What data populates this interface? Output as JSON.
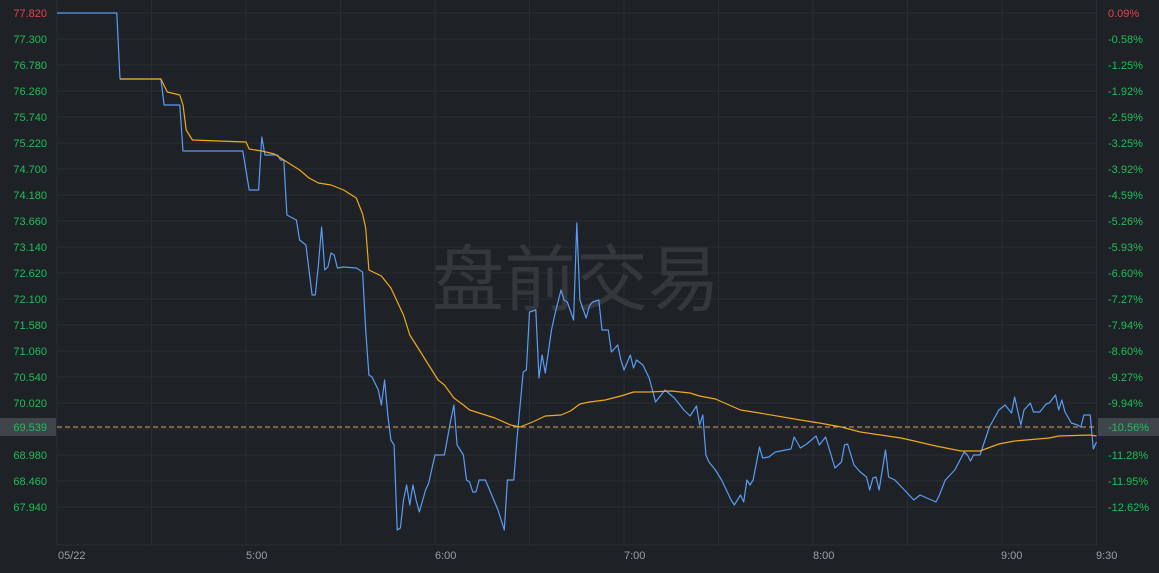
{
  "watermark": "盘前交易",
  "colors": {
    "background": "#1e2125",
    "grid": "#2a2e33",
    "price_line": "#5a9cf5",
    "avg_line": "#f0a81c",
    "up": "#e8414d",
    "down": "#1fbf5a",
    "highlight_box": "#40454b",
    "axis_text": "#9aa0a6"
  },
  "chart_data": {
    "type": "line",
    "date": "05/22",
    "x_ticks": [
      "05/22",
      "5:00",
      "6:00",
      "7:00",
      "8:00",
      "9:00",
      "9:30"
    ],
    "x_range": [
      "4:00",
      "9:30"
    ],
    "ylim": [
      67.94,
      77.82
    ],
    "y_ticks_left": [
      "77.820",
      "77.300",
      "76.780",
      "76.260",
      "75.740",
      "75.220",
      "74.700",
      "74.180",
      "73.660",
      "73.140",
      "72.620",
      "72.100",
      "71.580",
      "71.060",
      "70.540",
      "70.020",
      "69.500",
      "68.980",
      "68.460",
      "67.940"
    ],
    "y_ticks_right": [
      "0.09%",
      "-0.58%",
      "-1.25%",
      "-1.92%",
      "-2.59%",
      "-3.25%",
      "-3.92%",
      "-4.59%",
      "-5.26%",
      "-5.93%",
      "-6.60%",
      "-7.27%",
      "-7.94%",
      "-8.60%",
      "-9.27%",
      "-9.94%",
      "-10.61%",
      "-11.28%",
      "-11.95%",
      "-12.62%"
    ],
    "grid": true,
    "reference_line": {
      "price": "69.539",
      "percent": "-10.56%",
      "value": 69.539
    },
    "series": [
      {
        "role": "price",
        "points": [
          [
            "4:00",
            77.82
          ],
          [
            "4:19",
            77.82
          ],
          [
            "4:20",
            76.5
          ],
          [
            "4:33",
            76.5
          ],
          [
            "4:34",
            75.98
          ],
          [
            "4:39",
            75.98
          ],
          [
            "4:40",
            75.06
          ],
          [
            "4:59",
            75.06
          ],
          [
            "5:01",
            74.28
          ],
          [
            "5:04",
            74.28
          ],
          [
            "5:05",
            75.34
          ],
          [
            "5:06",
            74.98
          ],
          [
            "5:10",
            74.98
          ],
          [
            "5:11",
            74.88
          ],
          [
            "5:12",
            74.88
          ],
          [
            "5:13",
            73.78
          ],
          [
            "5:16",
            73.68
          ],
          [
            "5:17",
            73.28
          ],
          [
            "5:19",
            73.18
          ],
          [
            "5:20",
            72.68
          ],
          [
            "5:21",
            72.18
          ],
          [
            "5:22",
            72.18
          ],
          [
            "5:23",
            72.78
          ],
          [
            "5:24",
            73.54
          ],
          [
            "5:25",
            72.68
          ],
          [
            "5:26",
            72.74
          ],
          [
            "5:27",
            73.02
          ],
          [
            "5:28",
            72.98
          ],
          [
            "5:29",
            72.72
          ],
          [
            "5:31",
            72.74
          ],
          [
            "5:35",
            72.72
          ],
          [
            "5:37",
            72.64
          ],
          [
            "5:38",
            71.48
          ],
          [
            "5:39",
            70.58
          ],
          [
            "5:40",
            70.54
          ],
          [
            "5:42",
            70.28
          ],
          [
            "5:43",
            69.98
          ],
          [
            "5:44",
            70.48
          ],
          [
            "5:45",
            69.78
          ],
          [
            "5:46",
            69.28
          ],
          [
            "5:47",
            69.18
          ],
          [
            "5:48",
            67.48
          ],
          [
            "5:49",
            67.52
          ],
          [
            "5:50",
            68.08
          ],
          [
            "5:51",
            68.38
          ],
          [
            "5:52",
            67.98
          ],
          [
            "5:53",
            68.38
          ],
          [
            "5:54",
            68.08
          ],
          [
            "5:55",
            67.84
          ],
          [
            "5:57",
            68.28
          ],
          [
            "5:58",
            68.42
          ],
          [
            "6:00",
            68.98
          ],
          [
            "6:03",
            68.98
          ],
          [
            "6:05",
            69.68
          ],
          [
            "6:06",
            69.98
          ],
          [
            "6:07",
            69.18
          ],
          [
            "6:09",
            68.98
          ],
          [
            "6:10",
            68.48
          ],
          [
            "6:11",
            68.44
          ],
          [
            "6:12",
            68.24
          ],
          [
            "6:13",
            68.24
          ],
          [
            "6:14",
            68.48
          ],
          [
            "6:16",
            68.48
          ],
          [
            "6:18",
            68.18
          ],
          [
            "6:20",
            67.88
          ],
          [
            "6:22",
            67.48
          ],
          [
            "6:23",
            68.48
          ],
          [
            "6:25",
            68.48
          ],
          [
            "6:26",
            69.28
          ],
          [
            "6:28",
            70.64
          ],
          [
            "6:29",
            70.68
          ],
          [
            "6:30",
            71.84
          ],
          [
            "6:32",
            71.88
          ],
          [
            "6:33",
            70.52
          ],
          [
            "6:34",
            70.98
          ],
          [
            "6:35",
            70.62
          ],
          [
            "6:37",
            71.48
          ],
          [
            "6:38",
            71.78
          ],
          [
            "6:40",
            72.28
          ],
          [
            "6:41",
            72.08
          ],
          [
            "6:42",
            72.04
          ],
          [
            "6:44",
            71.68
          ],
          [
            "6:45",
            73.62
          ],
          [
            "6:46",
            72.08
          ],
          [
            "6:48",
            71.72
          ],
          [
            "6:49",
            71.96
          ],
          [
            "6:50",
            72.04
          ],
          [
            "6:52",
            72.08
          ],
          [
            "6:53",
            71.48
          ],
          [
            "6:55",
            71.48
          ],
          [
            "6:56",
            71.04
          ],
          [
            "6:58",
            71.18
          ],
          [
            "6:59",
            70.88
          ],
          [
            "7:00",
            70.68
          ],
          [
            "7:02",
            70.98
          ],
          [
            "7:03",
            70.72
          ],
          [
            "7:04",
            70.88
          ],
          [
            "7:06",
            70.78
          ],
          [
            "7:08",
            70.52
          ],
          [
            "7:09",
            70.28
          ],
          [
            "7:10",
            70.04
          ],
          [
            "7:13",
            70.28
          ],
          [
            "7:16",
            70.12
          ],
          [
            "7:19",
            69.88
          ],
          [
            "7:21",
            69.76
          ],
          [
            "7:23",
            69.96
          ],
          [
            "7:24",
            69.58
          ],
          [
            "7:25",
            69.78
          ],
          [
            "7:26",
            68.98
          ],
          [
            "7:27",
            68.84
          ],
          [
            "7:29",
            68.68
          ],
          [
            "7:31",
            68.48
          ],
          [
            "7:34",
            68.08
          ],
          [
            "7:35",
            67.98
          ],
          [
            "7:37",
            68.18
          ],
          [
            "7:38",
            68.04
          ],
          [
            "7:39",
            68.48
          ],
          [
            "7:40",
            68.38
          ],
          [
            "7:41",
            68.48
          ],
          [
            "7:43",
            69.14
          ],
          [
            "7:44",
            68.92
          ],
          [
            "7:46",
            68.94
          ],
          [
            "7:48",
            69.04
          ],
          [
            "7:53",
            69.1
          ],
          [
            "7:54",
            69.34
          ],
          [
            "7:56",
            69.12
          ],
          [
            "7:58",
            69.2
          ],
          [
            "8:01",
            69.36
          ],
          [
            "8:02",
            69.18
          ],
          [
            "8:04",
            69.34
          ],
          [
            "8:07",
            68.72
          ],
          [
            "8:09",
            68.84
          ],
          [
            "8:10",
            69.18
          ],
          [
            "8:11",
            69.2
          ],
          [
            "8:13",
            68.78
          ],
          [
            "8:15",
            68.64
          ],
          [
            "8:17",
            68.54
          ],
          [
            "8:18",
            68.28
          ],
          [
            "8:19",
            68.52
          ],
          [
            "8:20",
            68.54
          ],
          [
            "8:21",
            68.28
          ],
          [
            "8:23",
            69.08
          ],
          [
            "8:24",
            68.54
          ],
          [
            "8:26",
            68.48
          ],
          [
            "8:29",
            68.28
          ],
          [
            "8:32",
            68.08
          ],
          [
            "8:34",
            68.18
          ],
          [
            "8:39",
            68.04
          ],
          [
            "8:40",
            68.16
          ],
          [
            "8:42",
            68.48
          ],
          [
            "8:45",
            68.68
          ],
          [
            "8:48",
            69.04
          ],
          [
            "8:49",
            68.98
          ],
          [
            "8:50",
            68.86
          ],
          [
            "8:51",
            68.98
          ],
          [
            "8:53",
            68.98
          ],
          [
            "8:56",
            69.54
          ],
          [
            "8:59",
            69.88
          ],
          [
            "9:01",
            69.98
          ],
          [
            "9:03",
            69.82
          ],
          [
            "9:04",
            70.14
          ],
          [
            "9:06",
            69.58
          ],
          [
            "9:07",
            69.88
          ],
          [
            "9:09",
            70.02
          ],
          [
            "9:10",
            69.84
          ],
          [
            "9:12",
            69.84
          ],
          [
            "9:14",
            70.0
          ],
          [
            "9:15",
            70.02
          ],
          [
            "9:17",
            70.18
          ],
          [
            "9:18",
            69.88
          ],
          [
            "9:19",
            70.08
          ],
          [
            "9:20",
            69.84
          ],
          [
            "9:22",
            69.62
          ],
          [
            "9:24",
            69.58
          ],
          [
            "9:25",
            69.54
          ],
          [
            "9:26",
            69.78
          ],
          [
            "9:28",
            69.78
          ],
          [
            "9:29",
            69.1
          ],
          [
            "9:30",
            69.24
          ]
        ]
      },
      {
        "role": "average",
        "points": [
          [
            "4:20",
            76.5
          ],
          [
            "4:33",
            76.5
          ],
          [
            "4:35",
            76.24
          ],
          [
            "4:39",
            76.18
          ],
          [
            "4:40",
            75.98
          ],
          [
            "4:41",
            75.48
          ],
          [
            "4:43",
            75.28
          ],
          [
            "5:00",
            75.24
          ],
          [
            "5:01",
            75.1
          ],
          [
            "5:05",
            75.06
          ],
          [
            "5:09",
            75.0
          ],
          [
            "5:12",
            74.88
          ],
          [
            "5:17",
            74.68
          ],
          [
            "5:20",
            74.52
          ],
          [
            "5:23",
            74.42
          ],
          [
            "5:27",
            74.38
          ],
          [
            "5:31",
            74.28
          ],
          [
            "5:35",
            74.12
          ],
          [
            "5:37",
            73.8
          ],
          [
            "5:38",
            73.52
          ],
          [
            "5:39",
            72.68
          ],
          [
            "5:43",
            72.56
          ],
          [
            "5:46",
            72.32
          ],
          [
            "5:50",
            71.78
          ],
          [
            "5:52",
            71.38
          ],
          [
            "5:55",
            71.08
          ],
          [
            "5:58",
            70.78
          ],
          [
            "6:01",
            70.48
          ],
          [
            "6:03",
            70.38
          ],
          [
            "6:06",
            70.12
          ],
          [
            "6:09",
            69.98
          ],
          [
            "6:11",
            69.88
          ],
          [
            "6:14",
            69.82
          ],
          [
            "6:19",
            69.72
          ],
          [
            "6:24",
            69.58
          ],
          [
            "6:27",
            69.54
          ],
          [
            "6:31",
            69.64
          ],
          [
            "6:35",
            69.76
          ],
          [
            "6:40",
            69.78
          ],
          [
            "6:43",
            69.86
          ],
          [
            "6:46",
            70.0
          ],
          [
            "6:49",
            70.04
          ],
          [
            "6:54",
            70.08
          ],
          [
            "6:59",
            70.16
          ],
          [
            "7:03",
            70.24
          ],
          [
            "7:08",
            70.24
          ],
          [
            "7:15",
            70.26
          ],
          [
            "7:21",
            70.22
          ],
          [
            "7:24",
            70.16
          ],
          [
            "7:29",
            70.1
          ],
          [
            "7:37",
            69.88
          ],
          [
            "7:43",
            69.82
          ],
          [
            "7:56",
            69.68
          ],
          [
            "8:02",
            69.62
          ],
          [
            "8:09",
            69.54
          ],
          [
            "8:15",
            69.44
          ],
          [
            "8:28",
            69.32
          ],
          [
            "8:39",
            69.16
          ],
          [
            "8:47",
            69.06
          ],
          [
            "8:53",
            69.06
          ],
          [
            "8:59",
            69.2
          ],
          [
            "9:04",
            69.26
          ],
          [
            "9:15",
            69.32
          ],
          [
            "9:18",
            69.36
          ],
          [
            "9:28",
            69.38
          ],
          [
            "9:30",
            69.36
          ]
        ]
      }
    ]
  }
}
